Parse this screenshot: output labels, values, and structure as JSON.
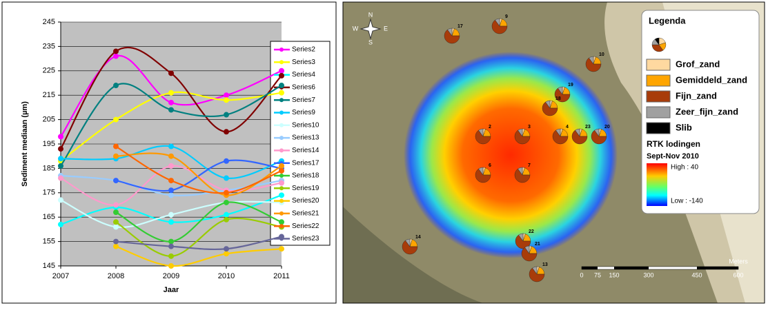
{
  "chart_data": {
    "type": "line",
    "x_label": "Jaar",
    "y_label": "Sediment mediaan (µm)",
    "categories": [
      "2007",
      "2008",
      "2009",
      "2010",
      "2011"
    ],
    "ylim": [
      145,
      245
    ],
    "yticks": [
      145,
      155,
      165,
      175,
      185,
      195,
      205,
      215,
      225,
      235,
      245
    ],
    "grid": true,
    "legend": "right",
    "series": [
      {
        "name": "Series2",
        "color": "#ff00ff",
        "values": [
          198,
          231,
          212,
          215,
          225
        ]
      },
      {
        "name": "Series3",
        "color": "#ffff00",
        "values": [
          188,
          205,
          216,
          213,
          216
        ]
      },
      {
        "name": "Series4",
        "color": "#00ffff",
        "values": [
          162,
          169,
          163,
          166,
          174
        ]
      },
      {
        "name": "Series6",
        "color": "#800000",
        "values": [
          193,
          233,
          224,
          200,
          223
        ]
      },
      {
        "name": "Series7",
        "color": "#008080",
        "values": [
          186,
          219,
          209,
          207,
          219
        ]
      },
      {
        "name": "Series9",
        "color": "#00ccff",
        "values": [
          189,
          189,
          194,
          181,
          188
        ]
      },
      {
        "name": "Series10",
        "color": "#ccffff",
        "values": [
          172,
          161,
          166,
          171,
          171
        ]
      },
      {
        "name": "Series13",
        "color": "#99ccff",
        "values": [
          182,
          180,
          174,
          176,
          180
        ]
      },
      {
        "name": "Series14",
        "color": "#ff99cc",
        "values": [
          181,
          170,
          186,
          176,
          179
        ]
      },
      {
        "name": "Series17",
        "color": "#3366ff",
        "values": [
          null,
          180,
          176,
          188,
          185
        ]
      },
      {
        "name": "Series18",
        "color": "#33cc33",
        "values": [
          null,
          167,
          155,
          171,
          163
        ]
      },
      {
        "name": "Series19",
        "color": "#99cc00",
        "values": [
          null,
          163,
          149,
          164,
          161
        ]
      },
      {
        "name": "Series20",
        "color": "#ffcc00",
        "values": [
          null,
          153,
          145,
          150,
          152
        ]
      },
      {
        "name": "Series21",
        "color": "#ff9900",
        "values": [
          null,
          190,
          190,
          174,
          186
        ]
      },
      {
        "name": "Series22",
        "color": "#ff6600",
        "values": [
          null,
          194,
          180,
          175,
          184
        ]
      },
      {
        "name": "Series23",
        "color": "#666699",
        "values": [
          null,
          155,
          153,
          152,
          157
        ]
      }
    ]
  },
  "map": {
    "compass": [
      "N",
      "E",
      "S",
      "W"
    ],
    "stations": [
      "17",
      "9",
      "10",
      "19",
      "18",
      "2",
      "3",
      "4",
      "23",
      "20",
      "6",
      "7",
      "14",
      "22",
      "21",
      "13"
    ],
    "legend": {
      "title": "Legenda",
      "classes": [
        {
          "name": "Grof_zand",
          "color": "#ffd9a0"
        },
        {
          "name": "Gemiddeld_zand",
          "color": "#ffa500"
        },
        {
          "name": "Fijn_zand",
          "color": "#a83c0a"
        },
        {
          "name": "Zeer_fijn_zand",
          "color": "#a0a0a0"
        },
        {
          "name": "Slib",
          "color": "#000000"
        }
      ],
      "raster_title": "RTK lodingen",
      "raster_subtitle": "Sept-Nov 2010",
      "high": "High : 40",
      "low": "Low : -140"
    },
    "scale": {
      "labels": [
        "0",
        "75",
        "150",
        "300",
        "450",
        "600"
      ],
      "unit": "Meters"
    }
  }
}
